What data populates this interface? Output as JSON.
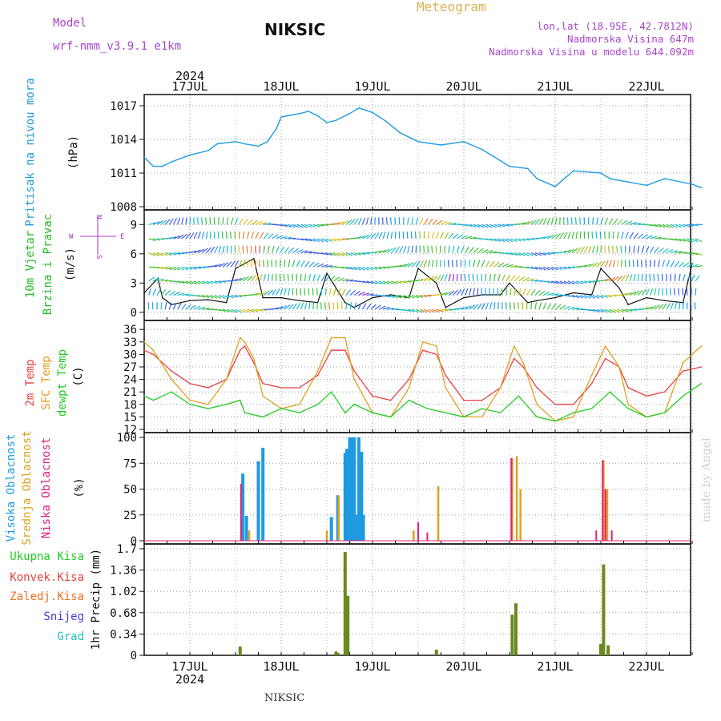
{
  "header": {
    "model_label": "Model",
    "model_name": "wrf-nmm_v3.9.1 e1km",
    "station": "NIKSIC",
    "product": "Meteogram",
    "coords": "lon,lat (18.95E, 42.7812N)",
    "elevation": "Nadmorska Visina 647m",
    "model_elevation": "Nadmorska Visina u modelu 644.092m"
  },
  "footer": {
    "station": "NIKSIC",
    "credit": "made by Angel"
  },
  "colors": {
    "pressure": "#1e9be0",
    "wind_label": "#22bb22",
    "wind_legend": "#aa33cc",
    "temp2m": "#e84040",
    "sfc_temp": "#e0a020",
    "dewpt": "#22cc22",
    "high_cloud": "#1e9be0",
    "mid_cloud": "#e0a020",
    "low_cloud": "#e0207a",
    "total_precip": "#6a8a20",
    "conv_precip": "#e84040",
    "frozen_precip": "#f07020",
    "snow": "#4040e0",
    "hail": "#20c0c0",
    "header_purple": "#aa44cc",
    "header_orange": "#e0b050"
  },
  "time_axis": {
    "year_label": "2024",
    "day_labels": [
      "17JUL",
      "18JUL",
      "19JUL",
      "20JUL",
      "21JUL",
      "22JUL"
    ]
  },
  "chart_data": [
    {
      "type": "line",
      "title": "",
      "ylabel_lines": [
        "Pritisak na nivou mora",
        "(hPa)"
      ],
      "ylim": [
        1008,
        1017
      ],
      "yticks": [
        "1008",
        "1011",
        "1014",
        "1017"
      ],
      "x_unit": "days from 17JUL 00",
      "series": [
        {
          "name": "Pritisak na nivou mora",
          "x": [
            -0.5,
            -0.4,
            -0.3,
            -0.2,
            0.0,
            0.2,
            0.3,
            0.5,
            0.6,
            0.75,
            0.85,
            0.95,
            1.0,
            1.2,
            1.3,
            1.4,
            1.5,
            1.6,
            1.75,
            1.85,
            2.0,
            2.15,
            2.3,
            2.5,
            2.75,
            3.0,
            3.2,
            3.5,
            3.7,
            3.8,
            4.0,
            4.2,
            4.5,
            4.6,
            4.8,
            5.0,
            5.2,
            5.5,
            5.6
          ],
          "values": [
            1012.4,
            1011.6,
            1011.6,
            1012.0,
            1012.6,
            1013.0,
            1013.6,
            1013.8,
            1013.6,
            1013.4,
            1013.8,
            1015.0,
            1016.0,
            1016.3,
            1016.5,
            1016.1,
            1015.5,
            1015.7,
            1016.3,
            1016.8,
            1016.4,
            1015.6,
            1014.6,
            1013.8,
            1013.5,
            1013.8,
            1013.1,
            1011.6,
            1011.4,
            1010.5,
            1009.8,
            1011.2,
            1011.0,
            1010.5,
            1010.2,
            1009.9,
            1010.5,
            1010.0,
            1009.7
          ]
        }
      ]
    },
    {
      "type": "line",
      "title": "",
      "ylabel_lines": [
        "10m Vjetar",
        "Brzina i Pravac",
        "(m/s)"
      ],
      "legend_compass": [
        "W",
        "E",
        "N",
        "S"
      ],
      "ylim": [
        -0.5,
        10.5
      ],
      "yticks": [
        "0",
        "3",
        "6",
        "9"
      ],
      "x_unit": "days from 17JUL 00",
      "series": [
        {
          "name": "10m Vjetar Brzina",
          "x": [
            -0.5,
            -0.35,
            -0.3,
            -0.2,
            0.0,
            0.2,
            0.4,
            0.5,
            0.7,
            0.8,
            1.0,
            1.2,
            1.4,
            1.5,
            1.7,
            1.8,
            2.0,
            2.2,
            2.4,
            2.5,
            2.7,
            2.8,
            3.0,
            3.2,
            3.4,
            3.5,
            3.7,
            3.8,
            4.0,
            4.2,
            4.4,
            4.5,
            4.7,
            4.8,
            5.0,
            5.2,
            5.4,
            5.5
          ],
          "values": [
            2.0,
            3.5,
            1.5,
            0.8,
            1.2,
            1.3,
            1.0,
            4.5,
            5.5,
            1.5,
            1.5,
            1.2,
            1.0,
            4.0,
            1.0,
            0.5,
            1.5,
            1.8,
            1.5,
            4.5,
            3.0,
            0.5,
            1.5,
            1.8,
            1.8,
            3.0,
            1.0,
            1.2,
            1.5,
            2.0,
            1.8,
            4.5,
            2.5,
            0.8,
            1.5,
            1.2,
            1.0,
            5.0
          ]
        }
      ]
    },
    {
      "type": "line",
      "title": "",
      "ylabel_lines": [
        "2m Temp",
        "SFC Temp",
        "dewpt Temp",
        "(C)"
      ],
      "ylim": [
        12,
        37
      ],
      "yticks": [
        "12",
        "15",
        "18",
        "21",
        "24",
        "27",
        "30",
        "33",
        "36"
      ],
      "x_unit": "days from 17JUL 00",
      "series": [
        {
          "name": "2m Temp",
          "x": [
            -0.5,
            -0.4,
            -0.2,
            0.0,
            0.2,
            0.4,
            0.55,
            0.6,
            0.7,
            0.8,
            1.0,
            1.2,
            1.4,
            1.55,
            1.7,
            1.8,
            2.0,
            2.2,
            2.4,
            2.55,
            2.7,
            2.8,
            3.0,
            3.2,
            3.4,
            3.55,
            3.65,
            3.8,
            4.0,
            4.2,
            4.4,
            4.55,
            4.7,
            4.8,
            5.0,
            5.2,
            5.4,
            5.6
          ],
          "values": [
            31,
            30,
            26,
            23,
            22,
            24,
            31,
            32,
            28,
            23,
            22,
            22,
            25,
            31,
            31,
            26,
            20,
            19,
            24,
            31,
            30,
            25,
            19,
            19,
            22,
            29,
            27,
            22,
            18,
            18,
            23,
            29,
            27,
            22,
            20,
            21,
            26,
            27
          ]
        },
        {
          "name": "SFC Temp",
          "x": [
            -0.5,
            -0.4,
            -0.2,
            0.0,
            0.2,
            0.4,
            0.55,
            0.6,
            0.7,
            0.8,
            1.0,
            1.2,
            1.4,
            1.55,
            1.7,
            1.8,
            2.0,
            2.2,
            2.4,
            2.55,
            2.7,
            2.8,
            3.0,
            3.2,
            3.4,
            3.55,
            3.65,
            3.8,
            4.0,
            4.2,
            4.4,
            4.55,
            4.7,
            4.8,
            5.0,
            5.2,
            5.4,
            5.6
          ],
          "values": [
            33,
            31,
            24,
            19,
            18,
            24,
            34,
            33,
            29,
            20,
            17,
            18,
            26,
            34,
            34,
            24,
            16,
            15,
            22,
            33,
            32,
            22,
            15,
            15,
            22,
            32,
            28,
            18,
            14,
            15,
            25,
            32,
            27,
            18,
            15,
            16,
            28,
            32
          ]
        },
        {
          "name": "dewpt Temp",
          "x": [
            -0.5,
            -0.4,
            -0.2,
            0.0,
            0.2,
            0.4,
            0.55,
            0.6,
            0.8,
            1.0,
            1.2,
            1.4,
            1.55,
            1.7,
            1.8,
            2.0,
            2.2,
            2.4,
            2.6,
            2.8,
            3.0,
            3.2,
            3.4,
            3.6,
            3.8,
            4.0,
            4.2,
            4.4,
            4.6,
            4.8,
            5.0,
            5.2,
            5.4,
            5.6
          ],
          "values": [
            20,
            19,
            21,
            18,
            17,
            18,
            19,
            16,
            15,
            17,
            16,
            18,
            21,
            16,
            18,
            16,
            15,
            19,
            17,
            16,
            15,
            17,
            16,
            20,
            15,
            14,
            16,
            17,
            21,
            17,
            15,
            16,
            20,
            23
          ]
        }
      ]
    },
    {
      "type": "bar",
      "title": "",
      "ylabel_lines": [
        "Visoka Oblacnost",
        "Srednja Oblacnost",
        "Niska Oblacnost",
        "(%)"
      ],
      "ylim": [
        0,
        100
      ],
      "yticks": [
        "0",
        "25",
        "50",
        "75",
        "100"
      ],
      "x_unit": "days from 17JUL 00",
      "series": [
        {
          "name": "Visoka Oblacnost",
          "x": [
            0.58,
            0.62,
            0.75,
            0.8,
            1.55,
            1.62,
            1.7,
            1.72,
            1.75,
            1.77,
            1.8,
            1.82,
            1.85,
            1.88,
            1.9,
            1.95
          ],
          "values": [
            65,
            24,
            77,
            90,
            23,
            44,
            85,
            89,
            100,
            100,
            100,
            25,
            100,
            86,
            25,
            0
          ]
        },
        {
          "name": "Srednja Oblacnost",
          "x": [
            0.65,
            1.5,
            1.63,
            2.45,
            2.72,
            3.53,
            3.58,
            3.62,
            4.53,
            4.57
          ],
          "values": [
            10,
            10,
            44,
            10,
            53,
            80,
            82,
            50,
            78,
            50
          ]
        },
        {
          "name": "Niska Oblacnost",
          "x": [
            0.56,
            2.5,
            2.6,
            3.52,
            4.45,
            4.52,
            4.55,
            4.62
          ],
          "values": [
            55,
            18,
            8,
            80,
            10,
            78,
            50,
            10
          ]
        }
      ]
    },
    {
      "type": "bar",
      "title": "",
      "ylabel_lines": [
        "1hr Precip (mm)"
      ],
      "legend_labels": [
        "Ukupna Kisa",
        "Konvek.Kisa",
        "Zaledj.Kisa",
        "Snijeg",
        "Grad"
      ],
      "ylim": [
        0,
        1.7
      ],
      "yticks": [
        "0",
        "0.34",
        "0.68",
        "1.02",
        "1.36",
        "1.7"
      ],
      "x_unit": "days from 17JUL 00",
      "series": [
        {
          "name": "Ukupna Kisa",
          "x": [
            0.55,
            1.6,
            1.62,
            1.7,
            1.73,
            2.7,
            3.53,
            3.57,
            4.5,
            4.53,
            4.58
          ],
          "values": [
            0.14,
            0.06,
            0.04,
            1.65,
            0.95,
            0.09,
            0.65,
            0.83,
            0.18,
            1.45,
            0.16
          ]
        }
      ]
    }
  ]
}
